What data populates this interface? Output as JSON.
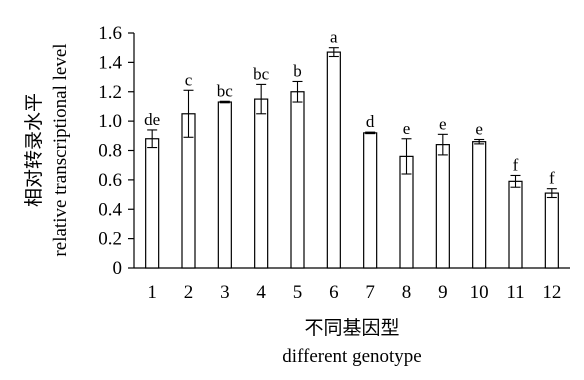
{
  "chart_data": {
    "type": "bar",
    "categories": [
      "1",
      "2",
      "3",
      "4",
      "5",
      "6",
      "7",
      "8",
      "9",
      "10",
      "11",
      "12"
    ],
    "values": [
      0.88,
      1.05,
      1.13,
      1.15,
      1.2,
      1.47,
      0.92,
      0.76,
      0.84,
      0.86,
      0.59,
      0.51
    ],
    "errors": [
      0.06,
      0.16,
      0.005,
      0.1,
      0.07,
      0.03,
      0.005,
      0.12,
      0.07,
      0.015,
      0.04,
      0.03
    ],
    "significance_labels": [
      "de",
      "c",
      "bc",
      "bc",
      "b",
      "a",
      "d",
      "e",
      "e",
      "e",
      "f",
      "f"
    ],
    "y_ticks": [
      "0",
      "0.2",
      "0.4",
      "0.6",
      "0.8",
      "1.0",
      "1.2",
      "1.4",
      "1.6"
    ],
    "ylim": [
      0,
      1.6
    ],
    "xlabel_cn": "不同基因型",
    "xlabel_en": "different genotype",
    "ylabel_cn": "相对转录水平",
    "ylabel_en": "relative transcriptional level",
    "grid": false,
    "legend": "none",
    "colors": {
      "bar_fill": "#ffffff",
      "stroke": "#000000"
    }
  }
}
